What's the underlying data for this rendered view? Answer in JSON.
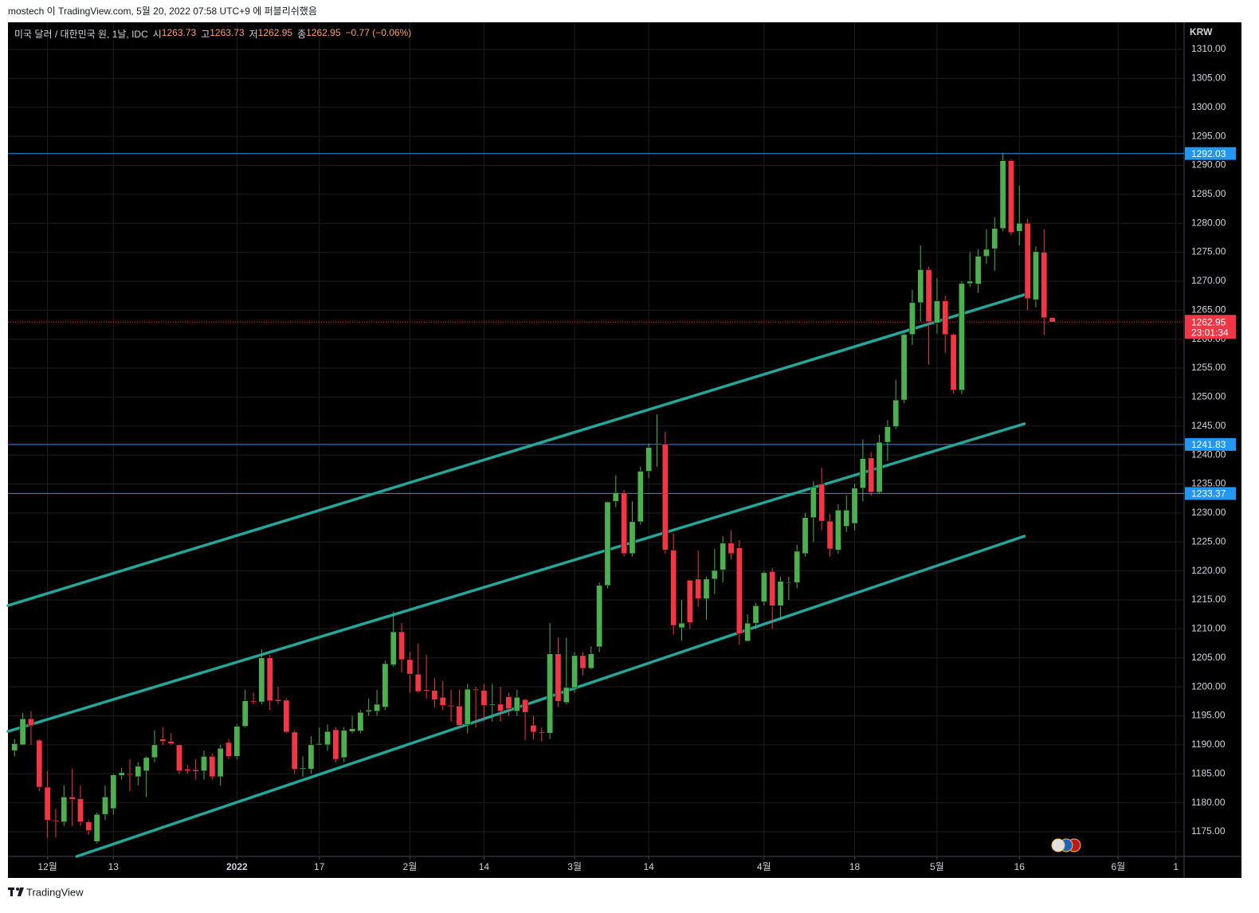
{
  "header": {
    "publisher": "mostech 이 TradingView.com, 5월 20, 2022 07:58 UTC+9 에 퍼블리쉬했음",
    "footer": "TradingView"
  },
  "chart_data": {
    "type": "candlestick",
    "title": "미국 달러 / 대한민국 원, 1날, IDC",
    "ohlc_labels": {
      "open_key": "시",
      "open": "1263.73",
      "high_key": "고",
      "high": "1263.73",
      "low_key": "저",
      "low": "1262.95",
      "close_key": "종",
      "close": "1262.95",
      "change": "−0.77 (−0.06%)"
    },
    "y_axis_label": "KRW",
    "up_color": "#4caf50",
    "down_color": "#f23645",
    "open": [
      1189.0,
      1190,
      1194.5,
      1190.8,
      1182.7,
      1177,
      1176.7,
      1181,
      1180.7,
      1176.7,
      1173.3,
      1178,
      1179,
      1184.7,
      1185,
      1184.5,
      1185.5,
      1187.8,
      1191,
      1190.6,
      1190,
      1185.8,
      1185.7,
      1185.5,
      1188,
      1184.5,
      1190.4,
      1188,
      1193.2,
      1197.6,
      1197.4,
      1205,
      1197.8,
      1197.7,
      1192.2,
      1185.8,
      1185.8,
      1190,
      1190,
      1192.6,
      1187.8,
      1192.3,
      1192.4,
      1195.7,
      1195.8,
      1196.5,
      1203.8,
      1209.5,
      1204.7,
      1202.2,
      1199.5,
      1199.4,
      1198.2,
      1196.8,
      1196.7,
      1193.5,
      1199.6,
      1199.4,
      1196.8,
      1197,
      1198.3,
      1195.8,
      1197.8,
      1193.4,
      1192.2,
      1192,
      1205.7,
      1197.3,
      1199.8,
      1205.4,
      1203.2,
      1206.9,
      1217.5,
      1232,
      1233.5,
      1223,
      1228.5,
      1237.2,
      1241.8,
      1241.9,
      1223.6,
      1210.2,
      1218.4,
      1218.6,
      1215.2,
      1218.6,
      1220.2,
      1224.8,
      1224,
      1207.9,
      1211,
      1214.7,
      1219.9,
      1214,
      1217.9,
      1218,
      1223,
      1229.2,
      1235,
      1228.6,
      1223.6,
      1227.7,
      1228.2,
      1234.3,
      1239.5,
      1233.6,
      1242.2,
      1244.9,
      1249.5,
      1260.8,
      1266.3,
      1272,
      1262.8,
      1266.6,
      1260.8,
      1251.2,
      1269.6,
      1269.5,
      1274.3,
      1275.6,
      1279.1,
      1290.8,
      1278.6,
      1280,
      1266.8,
      1275,
      1263.73
    ],
    "high": [
      1191,
      1195.5,
      1195.8,
      1191,
      1185.5,
      1179,
      1183,
      1185.8,
      1183,
      1177,
      1178.3,
      1183,
      1185,
      1186,
      1187.5,
      1187,
      1188,
      1192.5,
      1193,
      1192,
      1190,
      1186.5,
      1187.5,
      1189,
      1188.5,
      1190,
      1191,
      1193.5,
      1199.5,
      1199,
      1206.5,
      1205.5,
      1200,
      1198,
      1192.5,
      1188,
      1191.5,
      1193,
      1193.5,
      1193,
      1193,
      1195,
      1196,
      1198,
      1199.5,
      1204.5,
      1213,
      1211,
      1206,
      1207.5,
      1205.5,
      1201.5,
      1201,
      1199.5,
      1199.5,
      1200.5,
      1200,
      1200.5,
      1200.5,
      1200,
      1199,
      1199.5,
      1198,
      1195,
      1193,
      1211,
      1208.5,
      1208.5,
      1206,
      1206,
      1207,
      1218,
      1232,
      1236.5,
      1234,
      1232,
      1238,
      1242,
      1247,
      1244,
      1226.5,
      1215,
      1218.5,
      1223.5,
      1219,
      1223.8,
      1226,
      1227,
      1225.3,
      1212.5,
      1214.5,
      1220,
      1220.5,
      1219,
      1219,
      1224.5,
      1230,
      1235.5,
      1237.8,
      1229.8,
      1231.5,
      1233,
      1235,
      1242.7,
      1240.5,
      1243.5,
      1246,
      1253,
      1261,
      1268.5,
      1276.2,
      1272.5,
      1270.5,
      1267.5,
      1261,
      1270,
      1275,
      1275.5,
      1279,
      1281,
      1292.2,
      1291,
      1286.5,
      1280.8,
      1276,
      1279,
      1263.73
    ],
    "low": [
      1188,
      1190,
      1190,
      1182,
      1174,
      1174,
      1176,
      1176,
      1176,
      1174.5,
      1173,
      1177,
      1178,
      1184,
      1182,
      1183,
      1181,
      1187,
      1190,
      1190,
      1185,
      1185,
      1184,
      1184,
      1184,
      1183,
      1187.5,
      1187.5,
      1193,
      1197,
      1197,
      1196,
      1197,
      1192,
      1185,
      1184.5,
      1185,
      1190,
      1189,
      1187,
      1187,
      1192,
      1192,
      1195,
      1195,
      1196,
      1203.5,
      1202.5,
      1199,
      1199,
      1198,
      1196.5,
      1196,
      1194,
      1193,
      1192,
      1193,
      1194,
      1194,
      1194,
      1195,
      1195,
      1190.8,
      1191,
      1190.6,
      1191,
      1196.5,
      1197,
      1199,
      1202,
      1203,
      1206,
      1217,
      1231,
      1222.5,
      1222.5,
      1228,
      1236,
      1238,
      1223,
      1209,
      1208,
      1210,
      1213.8,
      1211.6,
      1216,
      1218,
      1222,
      1207.3,
      1207.8,
      1210,
      1214,
      1210,
      1211.5,
      1215,
      1217,
      1222.5,
      1225,
      1227,
      1222.5,
      1223,
      1226.7,
      1227,
      1232,
      1233,
      1233.3,
      1239,
      1244.5,
      1249,
      1259,
      1263,
      1255.6,
      1261,
      1257.6,
      1250.6,
      1250.5,
      1269,
      1268,
      1273,
      1271.8,
      1278.6,
      1278,
      1276.2,
      1265,
      1265.5,
      1260.7,
      1262.95
    ],
    "close": [
      1190.2,
      1194.5,
      1193.3,
      1182.7,
      1177,
      1176.8,
      1181,
      1180.6,
      1176.7,
      1175.2,
      1178,
      1181,
      1184.8,
      1185.2,
      1184.8,
      1186.3,
      1187.8,
      1190,
      1190.6,
      1190.2,
      1185.5,
      1185.5,
      1185.4,
      1188,
      1184.5,
      1189.4,
      1188,
      1193.2,
      1197.6,
      1197.4,
      1205,
      1197.6,
      1197.5,
      1192.2,
      1185.8,
      1186,
      1190,
      1190.2,
      1192.3,
      1187.5,
      1192.5,
      1192.8,
      1195.6,
      1196,
      1197,
      1204,
      1209.5,
      1204.7,
      1202.2,
      1199.2,
      1199.3,
      1197.8,
      1196.8,
      1196.6,
      1193.4,
      1199.6,
      1199.4,
      1196.8,
      1197,
      1195.8,
      1196.2,
      1198.2,
      1195.6,
      1192.2,
      1192,
      1205.7,
      1197.5,
      1199.9,
      1205.4,
      1203.2,
      1205.7,
      1217.5,
      1231.9,
      1233.5,
      1223,
      1228.5,
      1237.2,
      1241.3,
      1242,
      1223.6,
      1210.6,
      1211,
      1211.1,
      1215.2,
      1218.6,
      1220.1,
      1224.8,
      1223,
      1209.2,
      1211,
      1214,
      1219.7,
      1214,
      1218.2,
      1218,
      1223.4,
      1229.2,
      1234.5,
      1228.6,
      1223.8,
      1230.5,
      1230.5,
      1234.3,
      1239.4,
      1233.6,
      1242.2,
      1244.9,
      1249.5,
      1260.8,
      1266.3,
      1272,
      1263,
      1266.6,
      1260.8,
      1251.2,
      1269.6,
      1270,
      1274.3,
      1275.5,
      1279.1,
      1290.8,
      1278.4,
      1280,
      1267,
      1275.1,
      1263.7,
      1262.95
    ],
    "xlim": [
      -0.8,
      142
    ],
    "xticks": [
      {
        "value": 4,
        "label": "12월"
      },
      {
        "value": 12,
        "label": "13"
      },
      {
        "value": 27,
        "label": "2022"
      },
      {
        "value": 37,
        "label": "17"
      },
      {
        "value": 48,
        "label": "2월"
      },
      {
        "value": 57,
        "label": "14"
      },
      {
        "value": 68,
        "label": "3월"
      },
      {
        "value": 77,
        "label": "14"
      },
      {
        "value": 91,
        "label": "4월"
      },
      {
        "value": 102,
        "label": "18"
      },
      {
        "value": 112,
        "label": "5월"
      },
      {
        "value": 122,
        "label": "16"
      },
      {
        "value": 134,
        "label": "6월"
      },
      {
        "value": 141,
        "label": "1"
      }
    ],
    "ylim": [
      1170.74,
      1314.67
    ],
    "yticks": [
      {
        "value": 1175,
        "label": "1175.00"
      },
      {
        "value": 1180,
        "label": "1180.00"
      },
      {
        "value": 1185,
        "label": "1185.00"
      },
      {
        "value": 1190,
        "label": "1190.00"
      },
      {
        "value": 1195,
        "label": "1195.00"
      },
      {
        "value": 1200,
        "label": "1200.00"
      },
      {
        "value": 1205,
        "label": "1205.00"
      },
      {
        "value": 1210,
        "label": "1210.00"
      },
      {
        "value": 1215,
        "label": "1215.00"
      },
      {
        "value": 1220,
        "label": "1220.00"
      },
      {
        "value": 1225,
        "label": "1225.00"
      },
      {
        "value": 1230,
        "label": "1230.00"
      },
      {
        "value": 1235,
        "label": "1235.00"
      },
      {
        "value": 1240,
        "label": "1240.00"
      },
      {
        "value": 1245,
        "label": "1245.00"
      },
      {
        "value": 1250,
        "label": "1250.00"
      },
      {
        "value": 1255,
        "label": "1255.00"
      },
      {
        "value": 1260,
        "label": "1260.00"
      },
      {
        "value": 1265,
        "label": "1265.00"
      },
      {
        "value": 1270,
        "label": "1270.00"
      },
      {
        "value": 1275,
        "label": "1275.00"
      },
      {
        "value": 1280,
        "label": "1280.00"
      },
      {
        "value": 1285,
        "label": "1285.00"
      },
      {
        "value": 1290,
        "label": "1290.00"
      },
      {
        "value": 1295,
        "label": "1295.00"
      },
      {
        "value": 1300,
        "label": "1300.00"
      },
      {
        "value": 1305,
        "label": "1305.00"
      },
      {
        "value": 1310,
        "label": "1310.00"
      }
    ],
    "grid": true,
    "hlines": {
      "color": "#2196f3",
      "values": [
        1292.03,
        1241.83,
        1233.37
      ]
    },
    "last_price": {
      "value": 1262.95,
      "countdown": "23:01:34",
      "color": "#f23645"
    },
    "trendlines": {
      "color": "#26a69a",
      "lines": [
        {
          "x": [
            -0.8,
            122.6
          ],
          "y": [
            1214.04,
            1267.66
          ]
        },
        {
          "x": [
            -0.8,
            122.6
          ],
          "y": [
            1192.32,
            1245.39
          ]
        },
        {
          "x": [
            7.54,
            122.6
          ],
          "y": [
            1170.74,
            1226.0
          ]
        }
      ]
    }
  }
}
